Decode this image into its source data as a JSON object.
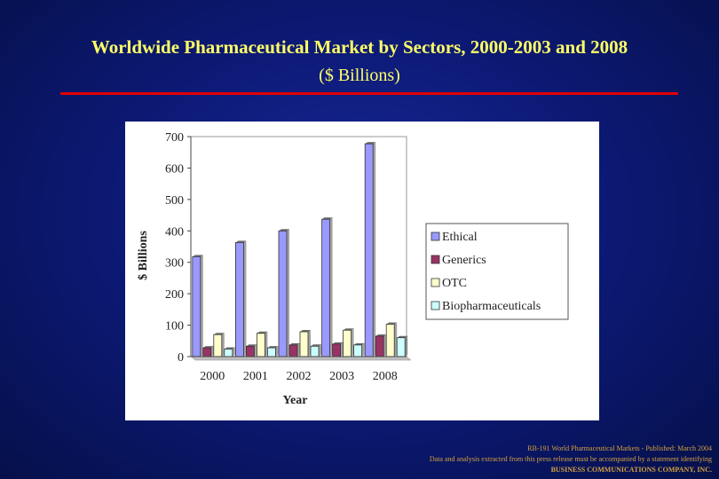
{
  "slide": {
    "title": "Worldwide Pharmaceutical Market by Sectors, 2000-2003 and 2008",
    "subtitle": "($ Billions)"
  },
  "footer": {
    "line1": "RB-191 World Pharmaceutical Markets - Published: March 2004",
    "line2": "Data and analysis extracted from this press release must be accompanied by a statement identifying",
    "line3": "BUSINESS COMMUNICATIONS COMPANY, INC."
  },
  "colors": {
    "background": "#0d1a78",
    "title": "#ffff66",
    "rule": "#e00000",
    "ethical": "#9999ff",
    "generics": "#993366",
    "otc": "#ffffcc",
    "biopharmaceuticals": "#ccffff"
  },
  "chart_data": {
    "type": "bar",
    "title": "",
    "xlabel": "Year",
    "ylabel": "$ Billions",
    "ylim": [
      0,
      700
    ],
    "yticks": [
      0,
      100,
      200,
      300,
      400,
      500,
      600,
      700
    ],
    "categories": [
      "2000",
      "2001",
      "2002",
      "2003",
      "2008"
    ],
    "grid": false,
    "legend_position": "right",
    "series": [
      {
        "name": "Ethical",
        "color": "#9999ff",
        "values": [
          318,
          363,
          400,
          437,
          677
        ]
      },
      {
        "name": "Generics",
        "color": "#993366",
        "values": [
          28,
          33,
          37,
          40,
          65
        ]
      },
      {
        "name": "OTC",
        "color": "#ffffcc",
        "values": [
          70,
          74,
          79,
          84,
          103
        ]
      },
      {
        "name": "Biopharmaceuticals",
        "color": "#ccffff",
        "values": [
          24,
          28,
          33,
          37,
          60
        ]
      }
    ]
  }
}
